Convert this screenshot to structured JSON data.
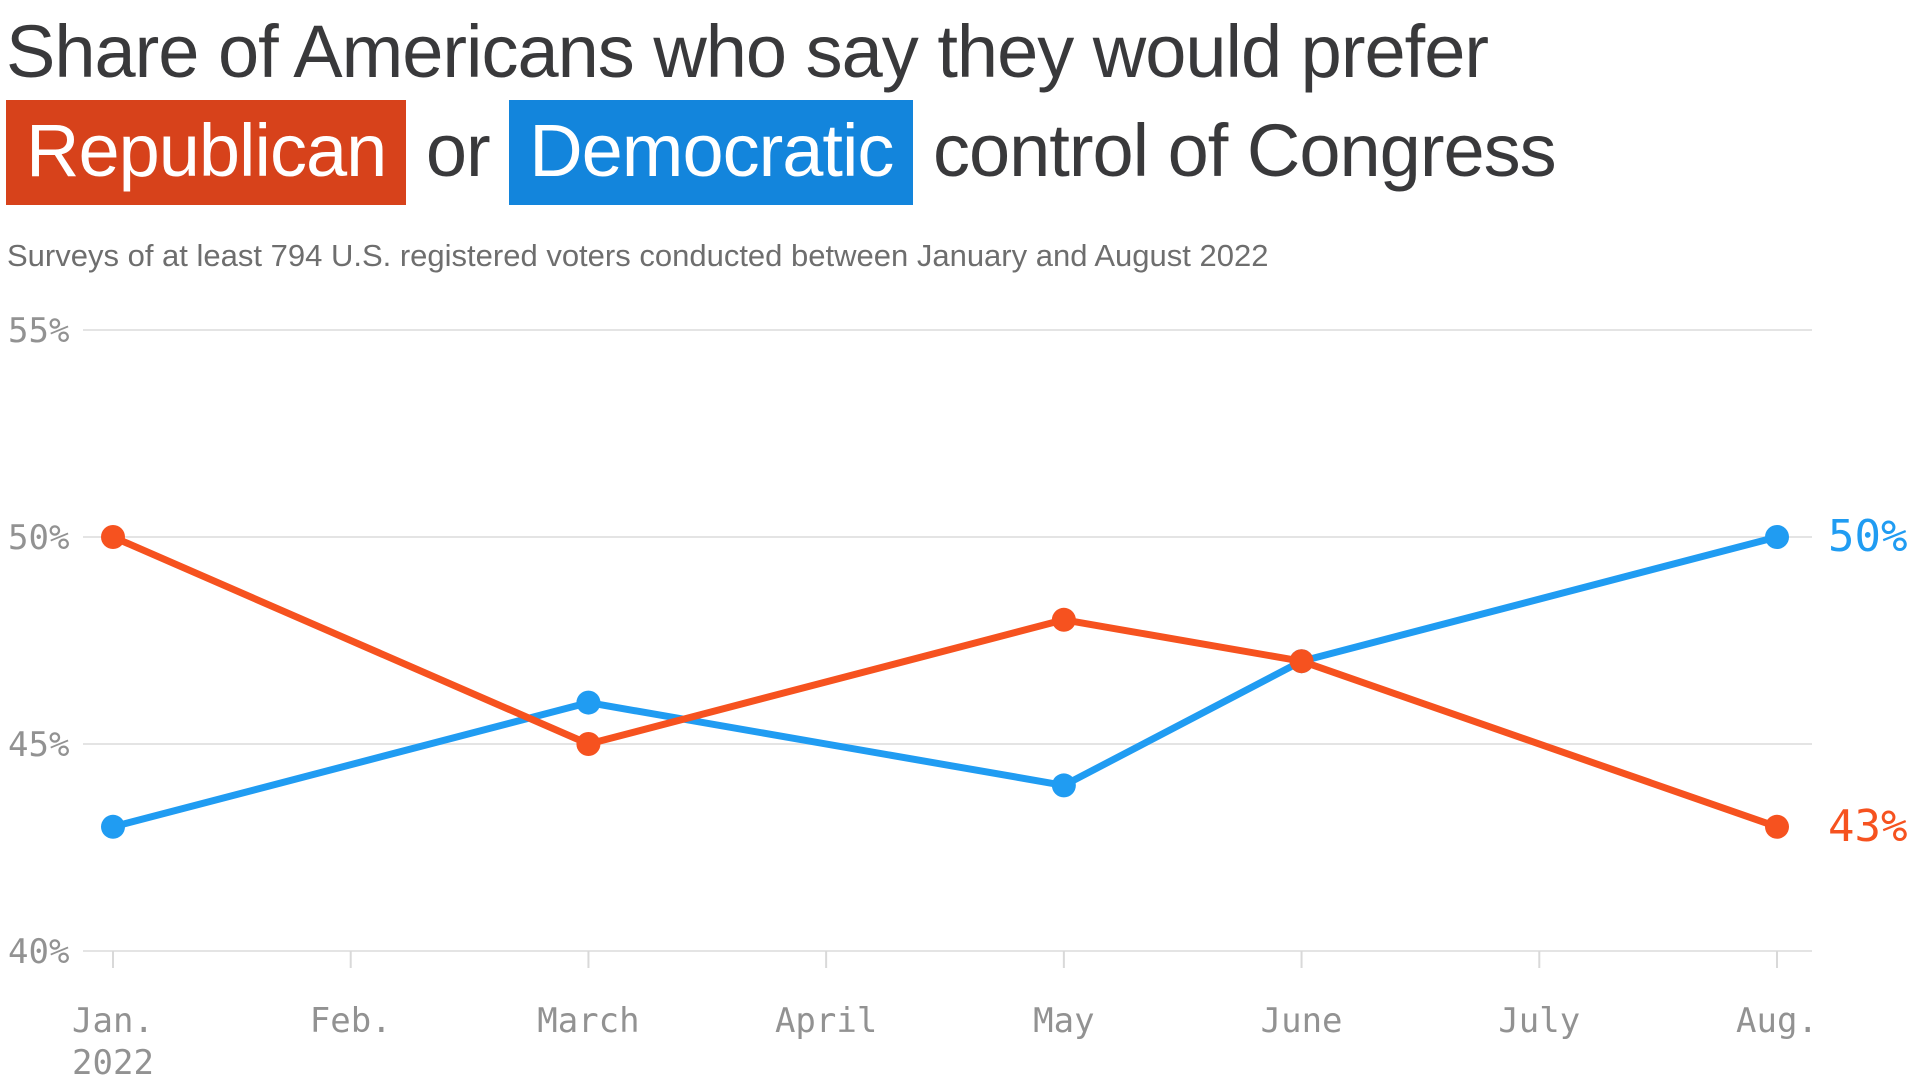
{
  "title": {
    "prefix": "Share of Americans who say they would prefer",
    "republican_label": "Republican",
    "or_text": "or",
    "democratic_label": "Democratic",
    "suffix": "control of Congress"
  },
  "subtitle": "Surveys of at least 794 U.S. registered voters conducted between January and August 2022",
  "colors": {
    "republican_accent": "#d7421b",
    "democratic_accent": "#1385dc",
    "republican_line": "#f6521f",
    "democratic_line": "#209cf2",
    "grid_line": "#e4e4e4",
    "axis_tick": "#d9d9d9",
    "axis_text": "#929292",
    "title_text": "#39393b",
    "subtitle_text": "#6e6e6e",
    "highlight_text": "#ffffff"
  },
  "chart_data": {
    "type": "line",
    "title": "Share of Americans who say they would prefer Republican or Democratic control of Congress",
    "subtitle": "Surveys of at least 794 U.S. registered voters conducted between January and August 2022",
    "x_categories": [
      {
        "label": "Jan.",
        "sublabel": "2022"
      },
      {
        "label": "Feb."
      },
      {
        "label": "March"
      },
      {
        "label": "April"
      },
      {
        "label": "May"
      },
      {
        "label": "June"
      },
      {
        "label": "July"
      },
      {
        "label": "Aug."
      }
    ],
    "y_axis": {
      "min": 40,
      "max": 55,
      "unit": "%",
      "ticks": [
        {
          "value": 55,
          "label": "55%"
        },
        {
          "value": 50,
          "label": "50%"
        },
        {
          "value": 45,
          "label": "45%"
        },
        {
          "value": 40,
          "label": "40%"
        }
      ]
    },
    "grid": "horizontal",
    "legend": "title-highlight-colors",
    "series": [
      {
        "name": "Democratic",
        "color": "#209cf2",
        "end_label": "50%",
        "points": [
          {
            "month": "Jan. 2022",
            "x": 0,
            "value": 43
          },
          {
            "month": "March",
            "x": 2,
            "value": 46
          },
          {
            "month": "May",
            "x": 4,
            "value": 44
          },
          {
            "month": "June",
            "x": 5,
            "value": 47
          },
          {
            "month": "Aug.",
            "x": 7,
            "value": 50
          }
        ]
      },
      {
        "name": "Republican",
        "color": "#f6521f",
        "end_label": "43%",
        "points": [
          {
            "month": "Jan. 2022",
            "x": 0,
            "value": 50
          },
          {
            "month": "March",
            "x": 2,
            "value": 45
          },
          {
            "month": "May",
            "x": 4,
            "value": 48
          },
          {
            "month": "June",
            "x": 5,
            "value": 47
          },
          {
            "month": "Aug.",
            "x": 7,
            "value": 43
          }
        ]
      }
    ]
  }
}
